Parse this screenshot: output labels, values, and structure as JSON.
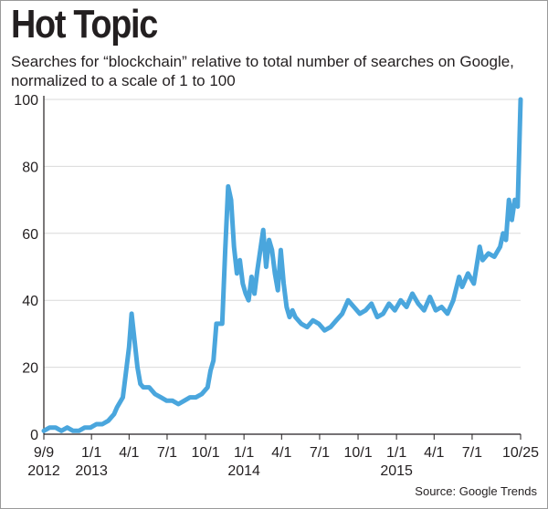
{
  "header": {
    "title": "Hot Topic",
    "subtitle": "Searches for “blockchain” relative to total number of searches on Google, normalized to a scale of 1 to 100"
  },
  "footer": {
    "source": "Source: Google Trends"
  },
  "colors": {
    "line": "#4aa6dd",
    "axis": "#231f20",
    "grid": "#d9d9d9",
    "text": "#231f20"
  },
  "chart_data": {
    "type": "line",
    "title": "Hot Topic",
    "subtitle": "Searches for “blockchain” relative to total number of searches on Google, normalized to a scale of 1 to 100",
    "xlabel": "",
    "ylabel": "",
    "ylim": [
      0,
      100
    ],
    "yticks": [
      0,
      20,
      40,
      60,
      80,
      100
    ],
    "xlim": [
      "2012-09-09",
      "2015-10-25"
    ],
    "xticks": [
      {
        "date": "2012-09-09",
        "label": "9/9",
        "year": "2012"
      },
      {
        "date": "2013-01-01",
        "label": "1/1",
        "year": "2013"
      },
      {
        "date": "2013-04-01",
        "label": "4/1",
        "year": ""
      },
      {
        "date": "2013-07-01",
        "label": "7/1",
        "year": ""
      },
      {
        "date": "2013-10-01",
        "label": "10/1",
        "year": ""
      },
      {
        "date": "2014-01-01",
        "label": "1/1",
        "year": "2014"
      },
      {
        "date": "2014-04-01",
        "label": "4/1",
        "year": ""
      },
      {
        "date": "2014-07-01",
        "label": "7/1",
        "year": ""
      },
      {
        "date": "2014-10-01",
        "label": "10/1",
        "year": ""
      },
      {
        "date": "2015-01-01",
        "label": "1/1",
        "year": "2015"
      },
      {
        "date": "2015-04-01",
        "label": "4/1",
        "year": ""
      },
      {
        "date": "2015-07-01",
        "label": "7/1",
        "year": ""
      },
      {
        "date": "2015-10-25",
        "label": "10/25",
        "year": ""
      }
    ],
    "grid": "horizontal",
    "legend": "none",
    "series": [
      {
        "name": "",
        "points": [
          [
            "2012-09-09",
            1
          ],
          [
            "2012-09-23",
            2
          ],
          [
            "2012-10-07",
            2
          ],
          [
            "2012-10-21",
            1
          ],
          [
            "2012-11-04",
            2
          ],
          [
            "2012-11-18",
            1
          ],
          [
            "2012-12-02",
            1
          ],
          [
            "2012-12-16",
            2
          ],
          [
            "2012-12-30",
            2
          ],
          [
            "2013-01-13",
            3
          ],
          [
            "2013-01-27",
            3
          ],
          [
            "2013-02-10",
            4
          ],
          [
            "2013-02-24",
            6
          ],
          [
            "2013-03-03",
            8
          ],
          [
            "2013-03-17",
            11
          ],
          [
            "2013-03-24",
            18
          ],
          [
            "2013-04-01",
            26
          ],
          [
            "2013-04-07",
            36
          ],
          [
            "2013-04-14",
            28
          ],
          [
            "2013-04-21",
            20
          ],
          [
            "2013-04-28",
            15
          ],
          [
            "2013-05-05",
            14
          ],
          [
            "2013-05-19",
            14
          ],
          [
            "2013-06-02",
            12
          ],
          [
            "2013-06-16",
            11
          ],
          [
            "2013-06-30",
            10
          ],
          [
            "2013-07-14",
            10
          ],
          [
            "2013-07-28",
            9
          ],
          [
            "2013-08-11",
            10
          ],
          [
            "2013-08-25",
            11
          ],
          [
            "2013-09-08",
            11
          ],
          [
            "2013-09-22",
            12
          ],
          [
            "2013-10-06",
            14
          ],
          [
            "2013-10-13",
            19
          ],
          [
            "2013-10-20",
            22
          ],
          [
            "2013-10-27",
            33
          ],
          [
            "2013-11-10",
            33
          ],
          [
            "2013-11-17",
            55
          ],
          [
            "2013-11-24",
            74
          ],
          [
            "2013-12-01",
            70
          ],
          [
            "2013-12-08",
            56
          ],
          [
            "2013-12-15",
            48
          ],
          [
            "2013-12-22",
            52
          ],
          [
            "2013-12-29",
            45
          ],
          [
            "2014-01-05",
            42
          ],
          [
            "2014-01-12",
            40
          ],
          [
            "2014-01-19",
            47
          ],
          [
            "2014-01-26",
            42
          ],
          [
            "2014-02-02",
            49
          ],
          [
            "2014-02-09",
            55
          ],
          [
            "2014-02-16",
            61
          ],
          [
            "2014-02-23",
            50
          ],
          [
            "2014-03-02",
            58
          ],
          [
            "2014-03-09",
            55
          ],
          [
            "2014-03-16",
            48
          ],
          [
            "2014-03-23",
            43
          ],
          [
            "2014-03-30",
            55
          ],
          [
            "2014-04-06",
            45
          ],
          [
            "2014-04-13",
            38
          ],
          [
            "2014-04-20",
            35
          ],
          [
            "2014-04-27",
            37
          ],
          [
            "2014-05-04",
            35
          ],
          [
            "2014-05-18",
            33
          ],
          [
            "2014-06-01",
            32
          ],
          [
            "2014-06-15",
            34
          ],
          [
            "2014-06-29",
            33
          ],
          [
            "2014-07-13",
            31
          ],
          [
            "2014-07-27",
            32
          ],
          [
            "2014-08-10",
            34
          ],
          [
            "2014-08-24",
            36
          ],
          [
            "2014-09-07",
            40
          ],
          [
            "2014-09-21",
            38
          ],
          [
            "2014-10-05",
            36
          ],
          [
            "2014-10-19",
            37
          ],
          [
            "2014-11-02",
            39
          ],
          [
            "2014-11-16",
            35
          ],
          [
            "2014-11-30",
            36
          ],
          [
            "2014-12-14",
            39
          ],
          [
            "2014-12-28",
            37
          ],
          [
            "2015-01-11",
            40
          ],
          [
            "2015-01-25",
            38
          ],
          [
            "2015-02-08",
            42
          ],
          [
            "2015-02-22",
            39
          ],
          [
            "2015-03-08",
            37
          ],
          [
            "2015-03-22",
            41
          ],
          [
            "2015-04-05",
            37
          ],
          [
            "2015-04-19",
            38
          ],
          [
            "2015-05-03",
            36
          ],
          [
            "2015-05-17",
            40
          ],
          [
            "2015-05-31",
            47
          ],
          [
            "2015-06-07",
            44
          ],
          [
            "2015-06-21",
            48
          ],
          [
            "2015-07-05",
            45
          ],
          [
            "2015-07-19",
            56
          ],
          [
            "2015-07-26",
            52
          ],
          [
            "2015-08-09",
            54
          ],
          [
            "2015-08-23",
            53
          ],
          [
            "2015-09-06",
            56
          ],
          [
            "2015-09-13",
            60
          ],
          [
            "2015-09-20",
            58
          ],
          [
            "2015-09-27",
            70
          ],
          [
            "2015-10-04",
            64
          ],
          [
            "2015-10-11",
            70
          ],
          [
            "2015-10-18",
            68
          ],
          [
            "2015-10-25",
            100
          ]
        ]
      }
    ]
  }
}
